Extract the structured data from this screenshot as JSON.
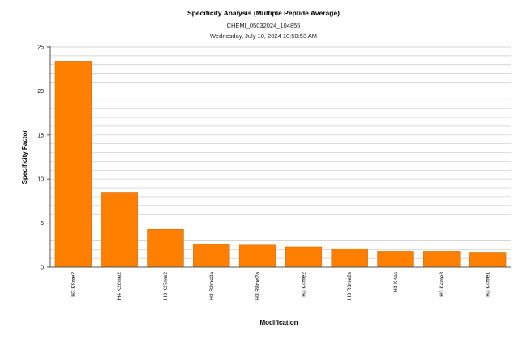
{
  "chart_data": {
    "type": "bar",
    "title": "Specificity Analysis (Multiple Peptide Average)",
    "subtitles": [
      "CHEMI_05032024_104855",
      "Wednesday, July 10, 2024 10:50:53 AM"
    ],
    "xlabel": "Modification",
    "ylabel": "Specificity Factor",
    "categories": [
      "H3 K9me2",
      "H4 K20me2",
      "H3 K27me2",
      "H3 R2me2a",
      "H3 R8me2a",
      "H3 K4me2",
      "H3 R8me2s",
      "H3 K4ac",
      "H3 K4me3",
      "H3 K4me1"
    ],
    "values": [
      23.4,
      8.5,
      4.3,
      2.6,
      2.5,
      2.3,
      2.1,
      1.8,
      1.8,
      1.7
    ],
    "ylim": [
      0,
      25
    ],
    "yticks": [
      0,
      5,
      10,
      15,
      20,
      25
    ],
    "minor_gridlines_every": 1,
    "grid": true,
    "legend": "none",
    "bar_color": "#ff8000",
    "bar_edge_color": "#c86400",
    "grid_color": "#c8c8c8"
  }
}
